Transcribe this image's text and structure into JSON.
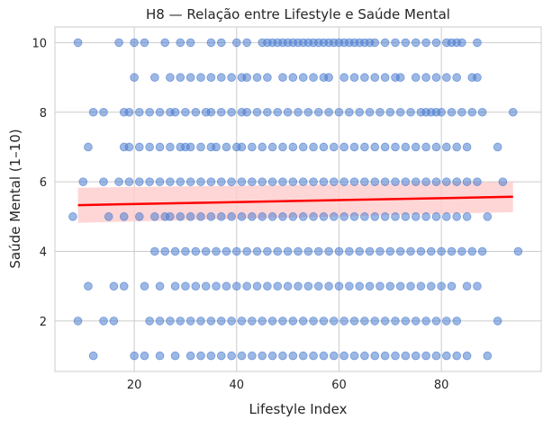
{
  "chart_data": {
    "type": "scatter",
    "title": "H8 — Relação entre Lifestyle e Saúde Mental",
    "xlabel": "Lifestyle Index",
    "ylabel": "Saúde Mental (1–10)",
    "xlim": [
      4.5,
      99.5
    ],
    "ylim": [
      0.55,
      10.45
    ],
    "xticks": [
      20,
      40,
      60,
      80
    ],
    "yticks": [
      2,
      4,
      6,
      8,
      10
    ],
    "grid": true,
    "colors": {
      "points": "#4c7ed0",
      "fit_line": "#ff0000",
      "confidence_band": "#ffcccc",
      "grid": "#cccccc",
      "frame": "#cccccc"
    },
    "regression": {
      "x": [
        9,
        94
      ],
      "y": [
        5.33,
        5.57
      ],
      "ci_lower": [
        4.82,
        5.13
      ],
      "ci_upper": [
        5.83,
        6.0
      ]
    },
    "series": [
      {
        "y": 10,
        "x": [
          9,
          17,
          20,
          22,
          26,
          29,
          31,
          35,
          37,
          40,
          42,
          45,
          46,
          47,
          48,
          49,
          50,
          51,
          52,
          53,
          54,
          55,
          56,
          57,
          58,
          59,
          60,
          61,
          62,
          63,
          64,
          65,
          66,
          67,
          69,
          71,
          73,
          75,
          77,
          79,
          81,
          82,
          83,
          84,
          87
        ]
      },
      {
        "y": 9,
        "x": [
          20,
          24,
          27,
          29,
          31,
          33,
          35,
          37,
          39,
          41,
          42,
          44,
          46,
          49,
          51,
          53,
          55,
          57,
          58,
          61,
          63,
          65,
          67,
          69,
          71,
          72,
          75,
          77,
          79,
          81,
          83,
          86,
          87
        ]
      },
      {
        "y": 8,
        "x": [
          12,
          14,
          18,
          19,
          21,
          23,
          25,
          27,
          28,
          30,
          32,
          34,
          35,
          37,
          39,
          41,
          42,
          44,
          46,
          48,
          50,
          52,
          54,
          56,
          58,
          60,
          62,
          64,
          66,
          68,
          70,
          72,
          74,
          76,
          77,
          78,
          79,
          80,
          82,
          84,
          86,
          88,
          94
        ]
      },
      {
        "y": 7,
        "x": [
          11,
          18,
          19,
          21,
          23,
          25,
          27,
          29,
          30,
          31,
          33,
          35,
          36,
          38,
          40,
          41,
          43,
          45,
          47,
          49,
          51,
          53,
          55,
          57,
          59,
          61,
          63,
          65,
          67,
          69,
          71,
          73,
          75,
          77,
          79,
          81,
          83,
          85,
          91
        ]
      },
      {
        "y": 6,
        "x": [
          10,
          14,
          17,
          19,
          21,
          23,
          25,
          27,
          29,
          31,
          33,
          35,
          37,
          39,
          41,
          43,
          45,
          47,
          49,
          51,
          53,
          55,
          57,
          59,
          61,
          63,
          65,
          67,
          69,
          71,
          73,
          75,
          77,
          79,
          81,
          83,
          85,
          87,
          92
        ]
      },
      {
        "y": 5,
        "x": [
          8,
          15,
          18,
          21,
          24,
          26,
          27,
          29,
          31,
          33,
          35,
          37,
          39,
          41,
          43,
          45,
          47,
          49,
          51,
          53,
          55,
          57,
          59,
          61,
          63,
          65,
          67,
          69,
          71,
          73,
          75,
          77,
          79,
          81,
          83,
          85,
          89
        ]
      },
      {
        "y": 4,
        "x": [
          24,
          26,
          28,
          30,
          32,
          34,
          36,
          38,
          40,
          42,
          44,
          46,
          48,
          50,
          52,
          54,
          56,
          58,
          60,
          62,
          64,
          66,
          68,
          70,
          72,
          74,
          76,
          78,
          80,
          82,
          84,
          86,
          88,
          95
        ]
      },
      {
        "y": 3,
        "x": [
          11,
          16,
          18,
          22,
          25,
          28,
          30,
          32,
          34,
          36,
          38,
          40,
          42,
          44,
          46,
          48,
          50,
          52,
          54,
          56,
          58,
          60,
          62,
          64,
          66,
          68,
          70,
          72,
          74,
          76,
          78,
          80,
          82,
          85,
          87
        ]
      },
      {
        "y": 2,
        "x": [
          9,
          14,
          16,
          23,
          25,
          27,
          29,
          31,
          33,
          35,
          37,
          39,
          41,
          43,
          45,
          47,
          49,
          51,
          53,
          55,
          57,
          59,
          61,
          63,
          65,
          67,
          69,
          71,
          73,
          75,
          77,
          79,
          81,
          83,
          91
        ]
      },
      {
        "y": 1,
        "x": [
          12,
          20,
          22,
          25,
          28,
          31,
          33,
          35,
          37,
          39,
          41,
          43,
          45,
          47,
          49,
          51,
          53,
          55,
          57,
          59,
          61,
          63,
          65,
          67,
          69,
          71,
          73,
          75,
          77,
          79,
          81,
          83,
          85,
          89
        ]
      }
    ]
  }
}
